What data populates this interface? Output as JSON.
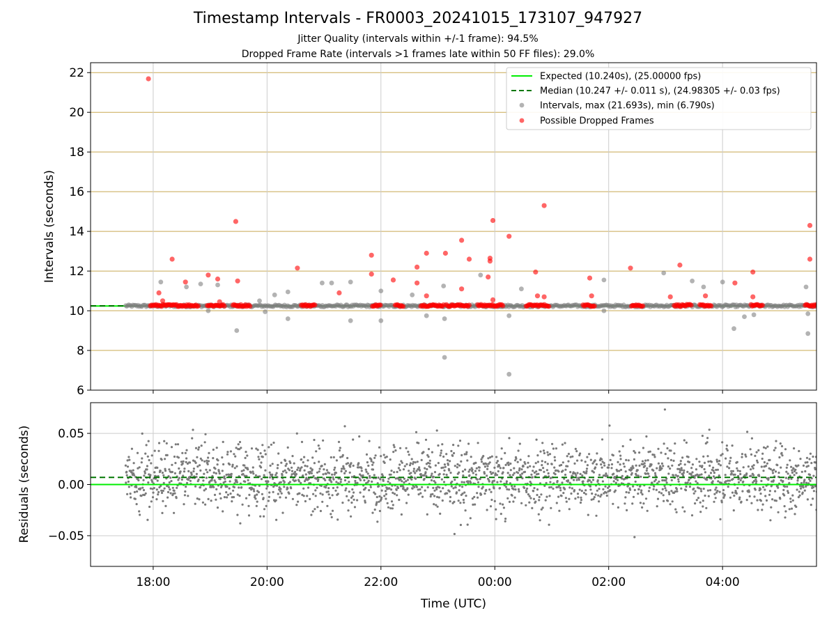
{
  "chart_data": [
    {
      "type": "scatter",
      "title": "Timestamp Intervals - FR0003_20241015_173107_947927",
      "subtitle_1": "Jitter Quality (intervals within +/-1 frame): 94.5%",
      "subtitle_2": "Dropped Frame Rate (intervals >1 frames late within 50 FF files): 29.0%",
      "ylabel": "Intervals (seconds)",
      "ylim": [
        6,
        22.5
      ],
      "yticks": [
        "6",
        "8",
        "10",
        "12",
        "14",
        "16",
        "18",
        "20",
        "22"
      ],
      "xlim_hours_utc": [
        16.9,
        29.65
      ],
      "grid": true,
      "expected_interval": 10.24,
      "median_interval": 10.247,
      "legend_position": "upper right",
      "legend": [
        "Expected (10.240s), (25.00000 fps)",
        "Median (10.247 +/- 0.011 s), (24.98305 +/- 0.03 fps)",
        "Intervals, max (21.693s), min (6.790s)",
        "Possible Dropped Frames"
      ],
      "colors": {
        "expected": "#00ee00",
        "median": "#007700",
        "intervals": "#808080",
        "dropped": "#ff0000",
        "gridline": "#c8a850"
      },
      "dropped_frame_points": [
        {
          "x": "17:55",
          "y": 21.69
        },
        {
          "x": "18:06",
          "y": 10.9
        },
        {
          "x": "18:10",
          "y": 10.5
        },
        {
          "x": "18:20",
          "y": 12.6
        },
        {
          "x": "18:34",
          "y": 11.45
        },
        {
          "x": "18:58",
          "y": 11.8
        },
        {
          "x": "19:08",
          "y": 11.6
        },
        {
          "x": "19:10",
          "y": 10.45
        },
        {
          "x": "19:27",
          "y": 14.5
        },
        {
          "x": "19:29",
          "y": 11.5
        },
        {
          "x": "20:32",
          "y": 12.15
        },
        {
          "x": "21:16",
          "y": 10.9
        },
        {
          "x": "21:50",
          "y": 12.8
        },
        {
          "x": "21:50",
          "y": 11.85
        },
        {
          "x": "22:13",
          "y": 11.55
        },
        {
          "x": "22:38",
          "y": 12.2
        },
        {
          "x": "22:38",
          "y": 11.4
        },
        {
          "x": "22:48",
          "y": 12.9
        },
        {
          "x": "22:48",
          "y": 10.75
        },
        {
          "x": "23:08",
          "y": 12.9
        },
        {
          "x": "23:25",
          "y": 13.55
        },
        {
          "x": "23:25",
          "y": 11.1
        },
        {
          "x": "23:33",
          "y": 12.6
        },
        {
          "x": "23:55",
          "y": 12.65
        },
        {
          "x": "23:55",
          "y": 12.5
        },
        {
          "x": "23:53",
          "y": 11.7
        },
        {
          "x": "23:58",
          "y": 14.55
        },
        {
          "x": "23:58",
          "y": 10.55
        },
        {
          "x": "00:15",
          "y": 13.75
        },
        {
          "x": "00:43",
          "y": 11.95
        },
        {
          "x": "00:45",
          "y": 10.75
        },
        {
          "x": "00:52",
          "y": 10.7
        },
        {
          "x": "00:52",
          "y": 15.3
        },
        {
          "x": "01:40",
          "y": 11.65
        },
        {
          "x": "01:42",
          "y": 10.75
        },
        {
          "x": "02:23",
          "y": 12.15
        },
        {
          "x": "03:05",
          "y": 10.7
        },
        {
          "x": "03:15",
          "y": 12.3
        },
        {
          "x": "03:42",
          "y": 10.75
        },
        {
          "x": "04:13",
          "y": 11.4
        },
        {
          "x": "04:32",
          "y": 11.95
        },
        {
          "x": "04:32",
          "y": 10.7
        },
        {
          "x": "05:32",
          "y": 12.6
        },
        {
          "x": "05:32",
          "y": 14.3
        }
      ],
      "interval_outliers": [
        {
          "x": "18:08",
          "y": 11.45
        },
        {
          "x": "18:35",
          "y": 11.2
        },
        {
          "x": "18:50",
          "y": 11.35
        },
        {
          "x": "18:58",
          "y": 10.0
        },
        {
          "x": "19:08",
          "y": 11.3
        },
        {
          "x": "19:28",
          "y": 9.0
        },
        {
          "x": "19:52",
          "y": 10.5
        },
        {
          "x": "19:58",
          "y": 9.95
        },
        {
          "x": "20:08",
          "y": 10.8
        },
        {
          "x": "20:22",
          "y": 10.95
        },
        {
          "x": "20:22",
          "y": 9.6
        },
        {
          "x": "20:58",
          "y": 11.4
        },
        {
          "x": "21:08",
          "y": 11.4
        },
        {
          "x": "21:28",
          "y": 11.45
        },
        {
          "x": "21:28",
          "y": 9.5
        },
        {
          "x": "22:00",
          "y": 11.0
        },
        {
          "x": "22:00",
          "y": 9.5
        },
        {
          "x": "22:33",
          "y": 10.8
        },
        {
          "x": "22:48",
          "y": 9.75
        },
        {
          "x": "23:06",
          "y": 11.25
        },
        {
          "x": "23:07",
          "y": 9.6
        },
        {
          "x": "23:07",
          "y": 7.65
        },
        {
          "x": "23:45",
          "y": 11.8
        },
        {
          "x": "00:15",
          "y": 9.75
        },
        {
          "x": "00:15",
          "y": 6.8
        },
        {
          "x": "00:28",
          "y": 11.1
        },
        {
          "x": "01:55",
          "y": 11.55
        },
        {
          "x": "01:55",
          "y": 10.0
        },
        {
          "x": "02:58",
          "y": 11.9
        },
        {
          "x": "03:28",
          "y": 11.5
        },
        {
          "x": "03:40",
          "y": 11.2
        },
        {
          "x": "04:00",
          "y": 11.45
        },
        {
          "x": "04:12",
          "y": 9.1
        },
        {
          "x": "04:23",
          "y": 9.7
        },
        {
          "x": "04:33",
          "y": 9.8
        },
        {
          "x": "05:28",
          "y": 11.2
        },
        {
          "x": "05:30",
          "y": 9.85
        },
        {
          "x": "05:30",
          "y": 8.85
        }
      ]
    },
    {
      "type": "scatter",
      "ylabel": "Residuals (seconds)",
      "xlabel": "Time (UTC)",
      "ylim": [
        -0.08,
        0.08
      ],
      "yticks": [
        "−0.05",
        "0.00",
        "0.05"
      ],
      "xticks": [
        "18:00",
        "20:00",
        "22:00",
        "00:00",
        "02:00",
        "04:00"
      ],
      "expected_residual": 0.0,
      "median_residual": 0.007,
      "typical_spread": 0.02,
      "time_range_utc": [
        "17:31",
        "05:40"
      ],
      "grid": true
    }
  ]
}
